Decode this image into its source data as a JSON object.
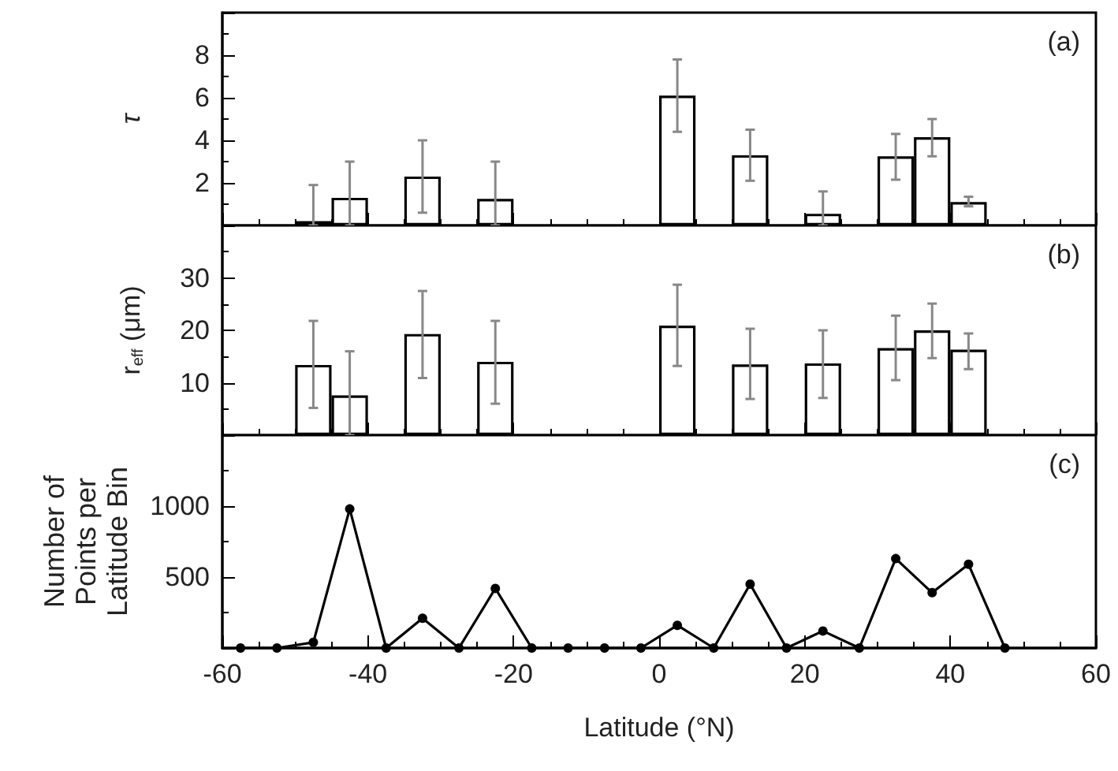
{
  "chart_data": [
    {
      "type": "bar",
      "ylabel": "τ",
      "annotations": [
        "(a)"
      ],
      "color": "#000000",
      "x": [
        -47.5,
        -42.5,
        -32.5,
        -22.5,
        2.5,
        12.5,
        22.5,
        32.5,
        37.5,
        42.5
      ],
      "values": [
        0.2,
        1.3,
        2.3,
        1.25,
        6.1,
        3.3,
        0.55,
        3.25,
        4.15,
        1.1
      ],
      "errors": [
        [
          0,
          1.9
        ],
        [
          0,
          3.0
        ],
        [
          0.6,
          4.0
        ],
        [
          0,
          3.0
        ],
        [
          4.4,
          7.8
        ],
        [
          2.1,
          4.5
        ],
        [
          0,
          1.6
        ],
        [
          2.15,
          4.3
        ],
        [
          3.25,
          5.0
        ],
        [
          0.9,
          1.35
        ]
      ],
      "xlim": [
        -60,
        60
      ],
      "xticks": [
        -60,
        -40,
        -20,
        0,
        20,
        40,
        60
      ],
      "ylim": [
        0,
        10
      ],
      "yticks": [
        2,
        4,
        6,
        8
      ],
      "tick_labels": "y"
    },
    {
      "type": "bar",
      "ylabel": "r$_{eff}$ (μm)",
      "annotations": [
        "(b)"
      ],
      "color": "#000000",
      "x": [
        -47.5,
        -42.5,
        -32.5,
        -22.5,
        2.5,
        12.5,
        22.5,
        32.5,
        37.5,
        42.5
      ],
      "values": [
        13.4,
        7.6,
        19.3,
        14.0,
        20.9,
        13.5,
        13.7,
        16.6,
        20.0,
        16.3
      ],
      "errors": [
        [
          5.2,
          21.8
        ],
        [
          0,
          16.0
        ],
        [
          10.9,
          27.5
        ],
        [
          6.0,
          21.8
        ],
        [
          13.2,
          28.7
        ],
        [
          6.9,
          20.3
        ],
        [
          7.1,
          20.0
        ],
        [
          10.5,
          22.8
        ],
        [
          14.7,
          25.1
        ],
        [
          12.6,
          19.4
        ]
      ],
      "xlim": [
        -60,
        60
      ],
      "xticks": [
        -60,
        -40,
        -20,
        0,
        20,
        40,
        60
      ],
      "ylim": [
        0,
        40
      ],
      "yticks": [
        10,
        20,
        30
      ],
      "tick_labels": "y"
    },
    {
      "type": "line",
      "ylabel": "Number of Points per Latitude Bin",
      "xlabel": "Latitude (°N)",
      "annotations": [
        "(c)"
      ],
      "color": "#000000",
      "marker": "circle",
      "line_style": "solid",
      "x": [
        -57.5,
        -52.5,
        -47.5,
        -42.5,
        -37.5,
        -32.5,
        -27.5,
        -22.5,
        -17.5,
        -12.5,
        -7.5,
        -2.5,
        2.5,
        7.5,
        12.5,
        17.5,
        22.5,
        27.5,
        32.5,
        37.5,
        42.5,
        47.5
      ],
      "values": [
        0,
        0,
        40,
        980,
        0,
        210,
        0,
        420,
        0,
        0,
        0,
        0,
        160,
        0,
        450,
        0,
        120,
        0,
        630,
        390,
        590,
        0
      ],
      "xlim": [
        -60,
        60
      ],
      "xticks": [
        -60,
        -40,
        -20,
        0,
        20,
        40,
        60
      ],
      "ylim": [
        0,
        1500
      ],
      "yticks": [
        500,
        1000
      ]
    }
  ]
}
